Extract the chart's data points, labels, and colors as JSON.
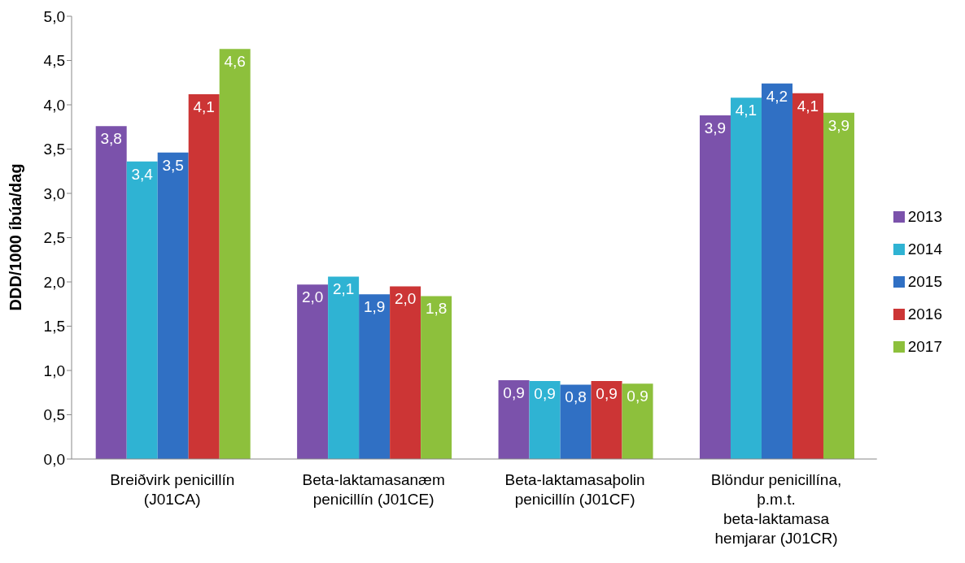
{
  "chart_data": {
    "type": "bar",
    "ylabel": "DDD/1000 íbúa/dag",
    "categories": [
      "Breiðvirk penicillín (J01CA)",
      "Beta-laktamasanæm penicillín (J01CE)",
      "Beta-laktamasaþolin penicillín (J01CF)",
      "Blöndur penicillína, þ.m.t. beta-laktamasa hemjarar (J01CR)"
    ],
    "series": [
      {
        "name": "2013",
        "color": "#7b52ab",
        "values": [
          3.76,
          1.97,
          0.89,
          3.88
        ],
        "value_labels": [
          "3,8",
          "2,0",
          "0,9",
          "3,9"
        ]
      },
      {
        "name": "2014",
        "color": "#2fb3d3",
        "values": [
          3.36,
          2.06,
          0.88,
          4.08
        ],
        "value_labels": [
          "3,4",
          "2,1",
          "0,9",
          "4,1"
        ]
      },
      {
        "name": "2015",
        "color": "#3070c4",
        "values": [
          3.46,
          1.86,
          0.84,
          4.24
        ],
        "value_labels": [
          "3,5",
          "1,9",
          "0,8",
          "4,2"
        ]
      },
      {
        "name": "2016",
        "color": "#cc3535",
        "values": [
          4.12,
          1.95,
          0.88,
          4.13
        ],
        "value_labels": [
          "4,1",
          "2,0",
          "0,9",
          "4,1"
        ]
      },
      {
        "name": "2017",
        "color": "#8dc03c",
        "values": [
          4.63,
          1.84,
          0.85,
          3.91
        ],
        "value_labels": [
          "4,6",
          "1,8",
          "0,9",
          "3,9"
        ]
      }
    ],
    "ylim": [
      0,
      5
    ],
    "yticks": [
      {
        "value": 0,
        "label": "0,0"
      },
      {
        "value": 0.5,
        "label": "0,5"
      },
      {
        "value": 1,
        "label": "1,0"
      },
      {
        "value": 1.5,
        "label": "1,5"
      },
      {
        "value": 2,
        "label": "2,0"
      },
      {
        "value": 2.5,
        "label": "2,5"
      },
      {
        "value": 3,
        "label": "3,0"
      },
      {
        "value": 3.5,
        "label": "3,5"
      },
      {
        "value": 4,
        "label": "4,0"
      },
      {
        "value": 4.5,
        "label": "4,5"
      },
      {
        "value": 5,
        "label": "5,0"
      }
    ],
    "grid": false,
    "legend": "right"
  }
}
